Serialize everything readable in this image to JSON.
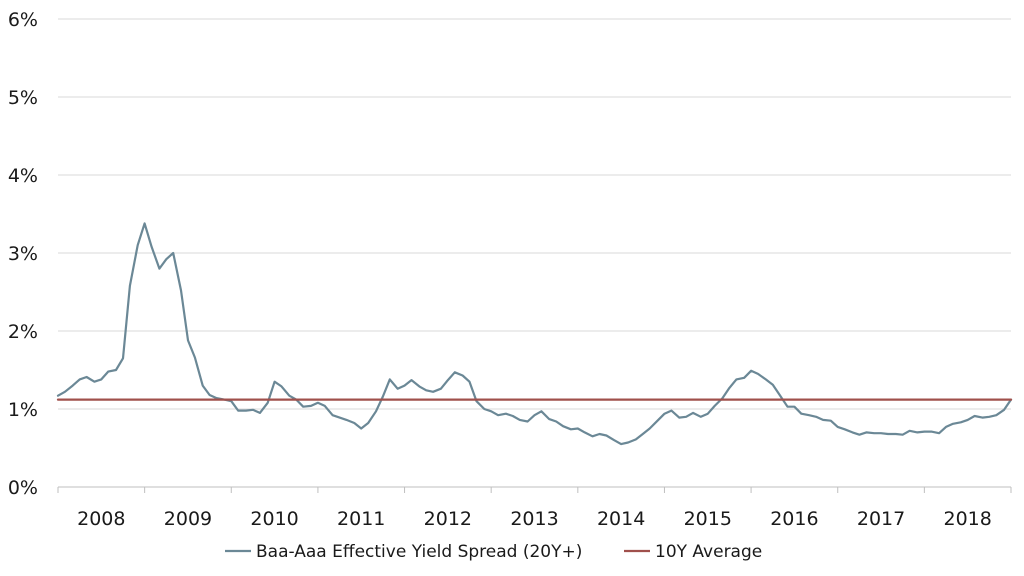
{
  "chart_data": {
    "type": "line",
    "title": "",
    "xlabel": "",
    "ylabel": "",
    "xlim": [
      2008,
      2019
    ],
    "ylim": [
      0,
      6
    ],
    "y_ticks": [
      {
        "value": 0,
        "label": "0%"
      },
      {
        "value": 1,
        "label": "1%"
      },
      {
        "value": 2,
        "label": "2%"
      },
      {
        "value": 3,
        "label": "3%"
      },
      {
        "value": 4,
        "label": "4%"
      },
      {
        "value": 5,
        "label": "5%"
      },
      {
        "value": 6,
        "label": "6%"
      }
    ],
    "x_ticks": [
      "2008",
      "2009",
      "2010",
      "2011",
      "2012",
      "2013",
      "2014",
      "2015",
      "2016",
      "2017",
      "2018"
    ],
    "grid": true,
    "legend_position": "bottom",
    "colors": {
      "spread": "#6b8896",
      "average": "#a0504c",
      "grid": "#d9d9d9",
      "axis": "#bfbfbf"
    },
    "series": [
      {
        "name": "Baa-Aaa Effective Yield Spread (20Y+)",
        "color": "#6b8896",
        "points": [
          [
            2008.0,
            1.17
          ],
          [
            2008.08,
            1.22
          ],
          [
            2008.17,
            1.3
          ],
          [
            2008.25,
            1.38
          ],
          [
            2008.33,
            1.41
          ],
          [
            2008.42,
            1.35
          ],
          [
            2008.5,
            1.38
          ],
          [
            2008.58,
            1.48
          ],
          [
            2008.67,
            1.5
          ],
          [
            2008.75,
            1.65
          ],
          [
            2008.83,
            2.58
          ],
          [
            2008.92,
            3.1
          ],
          [
            2009.0,
            3.38
          ],
          [
            2009.08,
            3.08
          ],
          [
            2009.17,
            2.8
          ],
          [
            2009.25,
            2.92
          ],
          [
            2009.33,
            3.0
          ],
          [
            2009.42,
            2.52
          ],
          [
            2009.5,
            1.88
          ],
          [
            2009.58,
            1.66
          ],
          [
            2009.67,
            1.3
          ],
          [
            2009.75,
            1.18
          ],
          [
            2009.83,
            1.14
          ],
          [
            2009.92,
            1.12
          ],
          [
            2010.0,
            1.1
          ],
          [
            2010.08,
            0.98
          ],
          [
            2010.17,
            0.98
          ],
          [
            2010.25,
            0.99
          ],
          [
            2010.33,
            0.95
          ],
          [
            2010.42,
            1.08
          ],
          [
            2010.5,
            1.35
          ],
          [
            2010.58,
            1.29
          ],
          [
            2010.67,
            1.17
          ],
          [
            2010.75,
            1.12
          ],
          [
            2010.83,
            1.03
          ],
          [
            2010.92,
            1.04
          ],
          [
            2011.0,
            1.08
          ],
          [
            2011.08,
            1.04
          ],
          [
            2011.17,
            0.92
          ],
          [
            2011.25,
            0.89
          ],
          [
            2011.33,
            0.86
          ],
          [
            2011.42,
            0.82
          ],
          [
            2011.5,
            0.75
          ],
          [
            2011.58,
            0.82
          ],
          [
            2011.67,
            0.97
          ],
          [
            2011.75,
            1.16
          ],
          [
            2011.83,
            1.38
          ],
          [
            2011.92,
            1.26
          ],
          [
            2012.0,
            1.3
          ],
          [
            2012.08,
            1.37
          ],
          [
            2012.17,
            1.29
          ],
          [
            2012.25,
            1.24
          ],
          [
            2012.33,
            1.22
          ],
          [
            2012.42,
            1.26
          ],
          [
            2012.5,
            1.37
          ],
          [
            2012.58,
            1.47
          ],
          [
            2012.67,
            1.43
          ],
          [
            2012.75,
            1.35
          ],
          [
            2012.83,
            1.1
          ],
          [
            2012.92,
            1.0
          ],
          [
            2013.0,
            0.97
          ],
          [
            2013.08,
            0.92
          ],
          [
            2013.17,
            0.94
          ],
          [
            2013.25,
            0.91
          ],
          [
            2013.33,
            0.86
          ],
          [
            2013.42,
            0.84
          ],
          [
            2013.5,
            0.92
          ],
          [
            2013.58,
            0.97
          ],
          [
            2013.67,
            0.87
          ],
          [
            2013.75,
            0.84
          ],
          [
            2013.83,
            0.78
          ],
          [
            2013.92,
            0.74
          ],
          [
            2014.0,
            0.75
          ],
          [
            2014.08,
            0.7
          ],
          [
            2014.17,
            0.65
          ],
          [
            2014.25,
            0.68
          ],
          [
            2014.33,
            0.66
          ],
          [
            2014.42,
            0.6
          ],
          [
            2014.5,
            0.55
          ],
          [
            2014.58,
            0.57
          ],
          [
            2014.67,
            0.61
          ],
          [
            2014.75,
            0.68
          ],
          [
            2014.83,
            0.75
          ],
          [
            2014.92,
            0.85
          ],
          [
            2015.0,
            0.94
          ],
          [
            2015.08,
            0.98
          ],
          [
            2015.17,
            0.89
          ],
          [
            2015.25,
            0.9
          ],
          [
            2015.33,
            0.95
          ],
          [
            2015.42,
            0.9
          ],
          [
            2015.5,
            0.94
          ],
          [
            2015.58,
            1.04
          ],
          [
            2015.67,
            1.14
          ],
          [
            2015.75,
            1.27
          ],
          [
            2015.83,
            1.38
          ],
          [
            2015.92,
            1.4
          ],
          [
            2016.0,
            1.49
          ],
          [
            2016.08,
            1.45
          ],
          [
            2016.17,
            1.38
          ],
          [
            2016.25,
            1.31
          ],
          [
            2016.33,
            1.18
          ],
          [
            2016.42,
            1.03
          ],
          [
            2016.5,
            1.03
          ],
          [
            2016.58,
            0.94
          ],
          [
            2016.67,
            0.92
          ],
          [
            2016.75,
            0.9
          ],
          [
            2016.83,
            0.86
          ],
          [
            2016.92,
            0.85
          ],
          [
            2017.0,
            0.77
          ],
          [
            2017.08,
            0.74
          ],
          [
            2017.17,
            0.7
          ],
          [
            2017.25,
            0.67
          ],
          [
            2017.33,
            0.7
          ],
          [
            2017.42,
            0.69
          ],
          [
            2017.5,
            0.69
          ],
          [
            2017.58,
            0.68
          ],
          [
            2017.67,
            0.68
          ],
          [
            2017.75,
            0.67
          ],
          [
            2017.83,
            0.72
          ],
          [
            2017.92,
            0.7
          ],
          [
            2018.0,
            0.71
          ],
          [
            2018.08,
            0.71
          ],
          [
            2018.17,
            0.69
          ],
          [
            2018.25,
            0.77
          ],
          [
            2018.33,
            0.81
          ],
          [
            2018.42,
            0.83
          ],
          [
            2018.5,
            0.86
          ],
          [
            2018.58,
            0.91
          ],
          [
            2018.67,
            0.89
          ],
          [
            2018.75,
            0.9
          ],
          [
            2018.83,
            0.92
          ],
          [
            2018.92,
            0.99
          ],
          [
            2019.0,
            1.12
          ]
        ]
      },
      {
        "name": "10Y Average",
        "color": "#a0504c",
        "points": [
          [
            2008.0,
            1.12
          ],
          [
            2019.0,
            1.12
          ]
        ]
      }
    ]
  }
}
